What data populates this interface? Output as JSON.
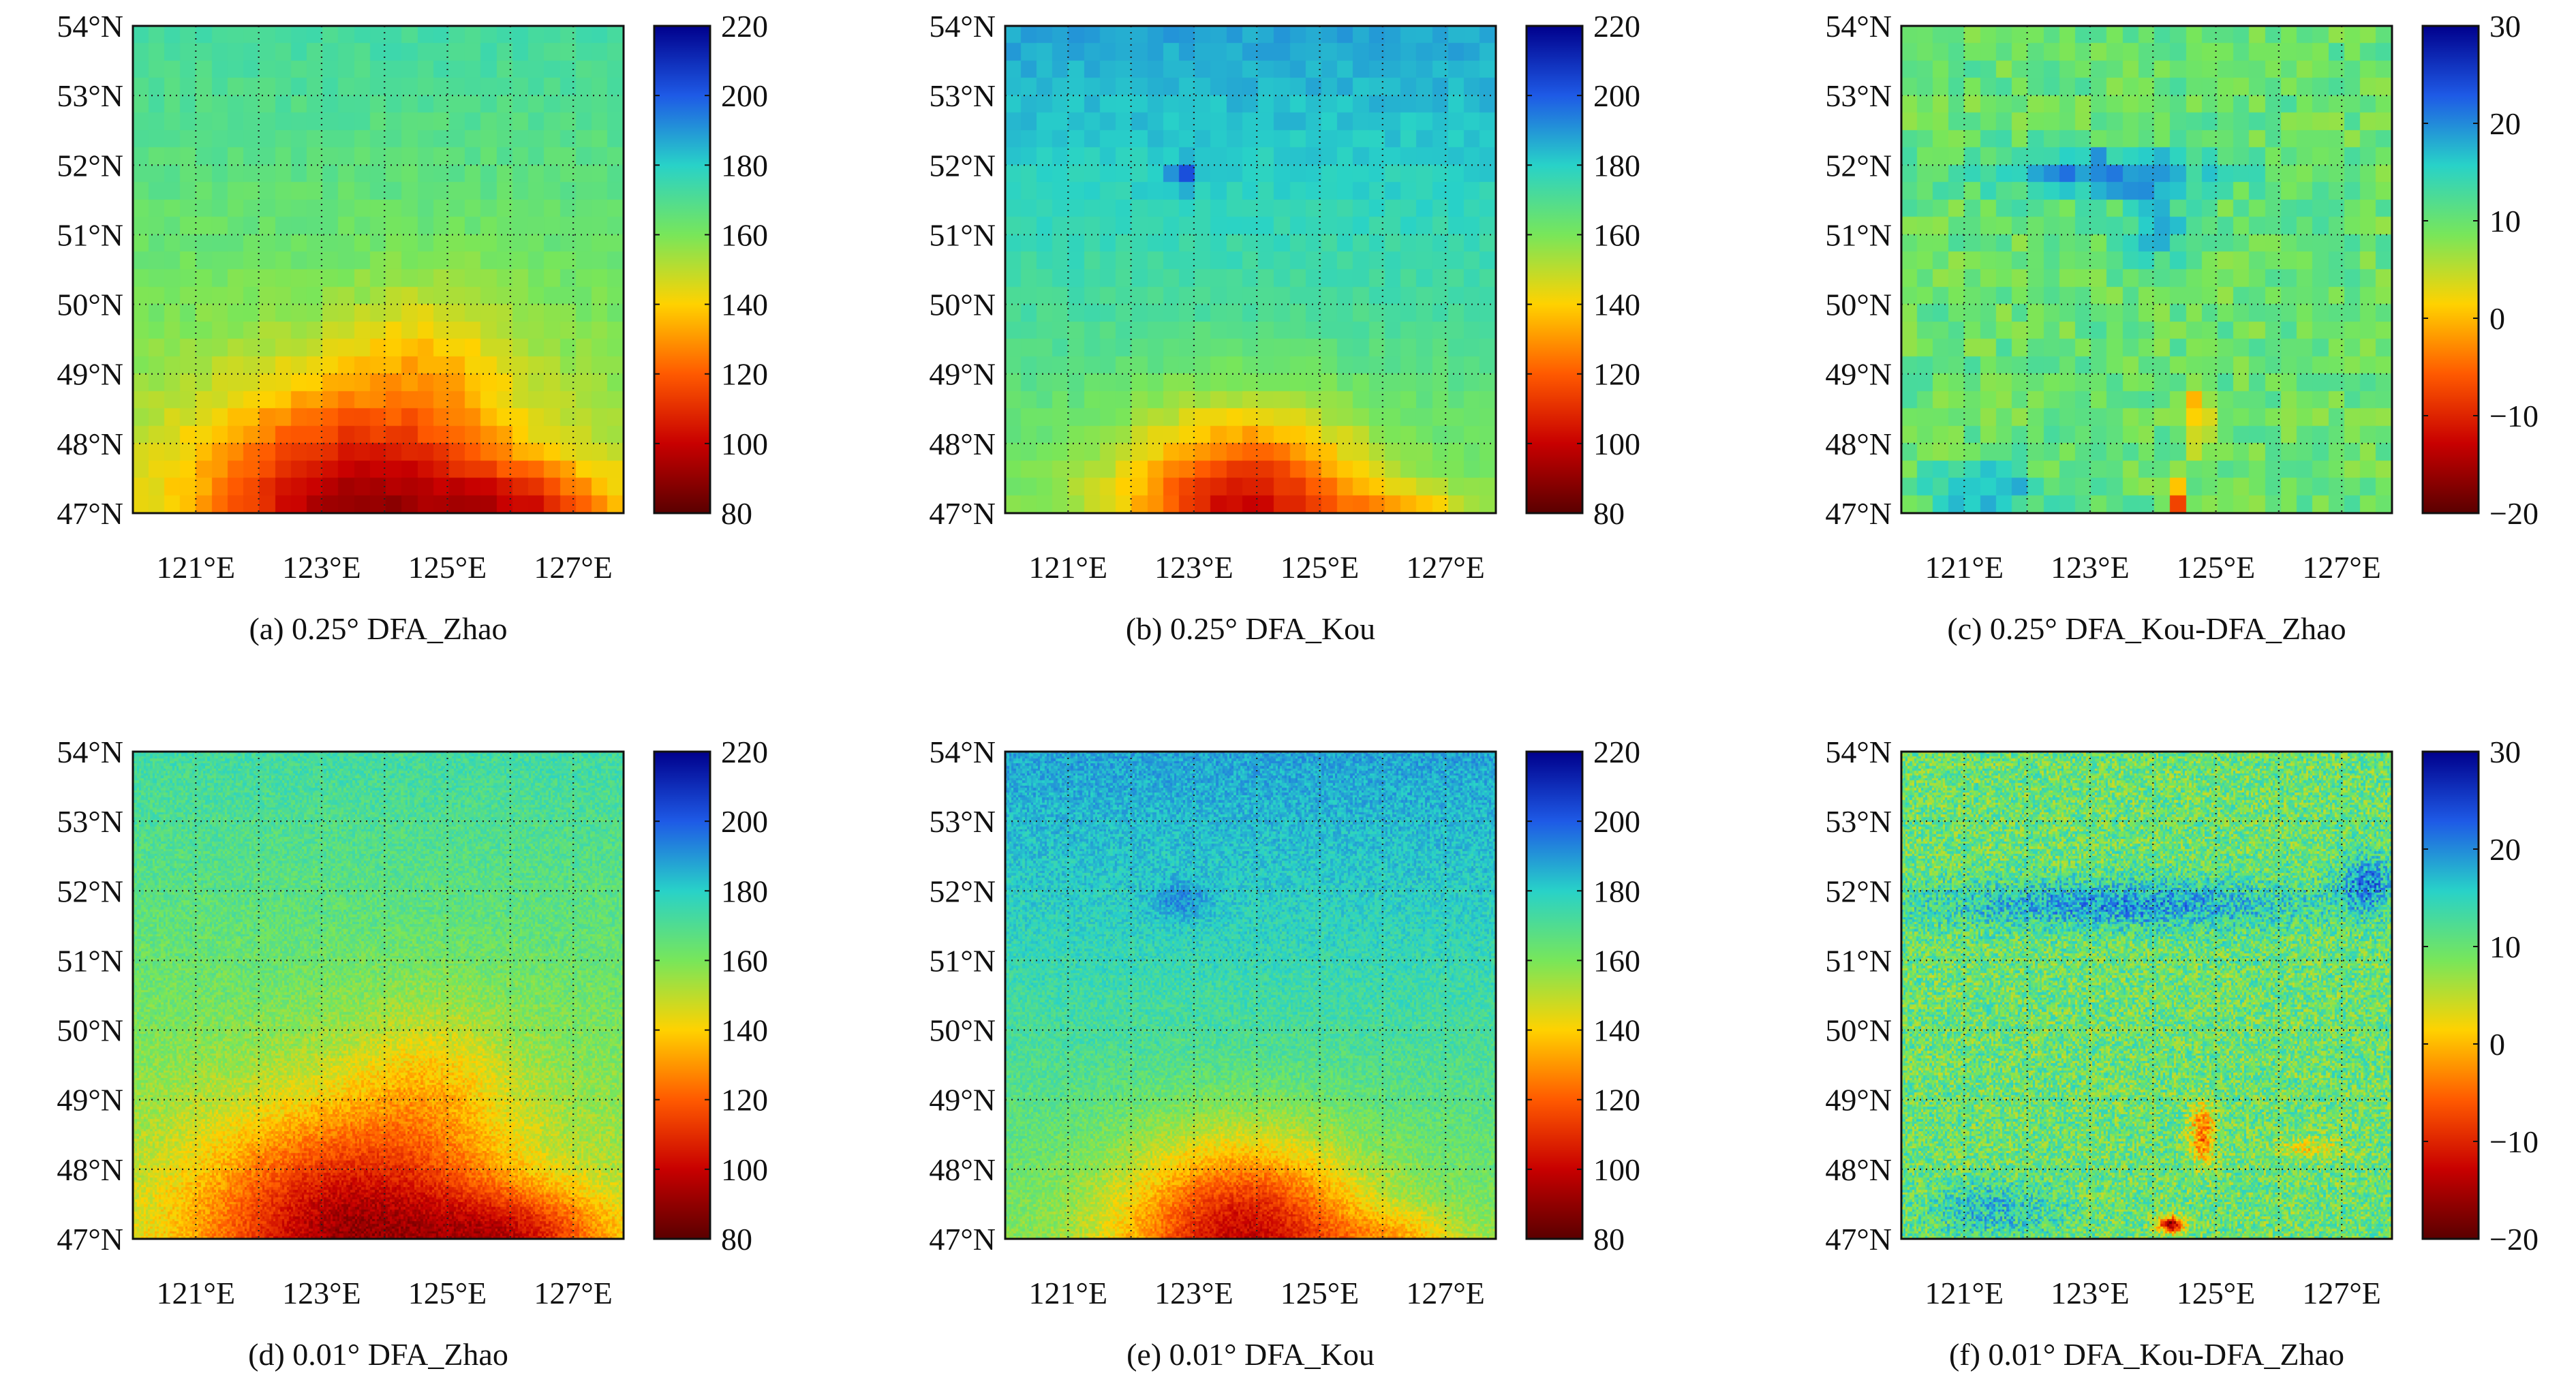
{
  "figure": {
    "panel_count": 6
  },
  "colormap": {
    "name": "jet",
    "stops": [
      "#5a0000",
      "#c80000",
      "#ff5a00",
      "#ffd200",
      "#78e65a",
      "#28d2c8",
      "#1e5ae6",
      "#00008c"
    ]
  },
  "chart_data": [
    {
      "type": "heatmap",
      "id": "a",
      "caption": "(a) 0.25° DFA_Zhao",
      "resolution": 0.25,
      "x_range": [
        120.0,
        127.8
      ],
      "y_range": [
        47,
        54
      ],
      "x_ticks": [
        121,
        123,
        125,
        127
      ],
      "x_tick_labels": [
        "121°E",
        "123°E",
        "125°E",
        "127°E"
      ],
      "y_ticks": [
        47,
        48,
        49,
        50,
        51,
        52,
        53,
        54
      ],
      "y_tick_labels": [
        "47°N",
        "48°N",
        "49°N",
        "50°N",
        "51°N",
        "52°N",
        "53°N",
        "54°N"
      ],
      "grid": "dotted",
      "colorbar": {
        "min": 80,
        "max": 220,
        "ticks": [
          80,
          100,
          120,
          140,
          160,
          180,
          200,
          220
        ],
        "labels": [
          "80",
          "100",
          "120",
          "140",
          "160",
          "180",
          "200",
          "220"
        ]
      },
      "field": {
        "base": 152,
        "north_gradient": 3,
        "noise": 3,
        "patches": [
          {
            "lon": 123.5,
            "lat": 47.0,
            "rx": 2.4,
            "ry": 1.8,
            "amp": -60
          },
          {
            "lon": 126.2,
            "lat": 47.0,
            "rx": 1.5,
            "ry": 0.7,
            "amp": -35
          },
          {
            "lon": 124.8,
            "lat": 49.3,
            "rx": 1.3,
            "ry": 1.2,
            "amp": -14
          }
        ]
      }
    },
    {
      "type": "heatmap",
      "id": "b",
      "caption": "(b) 0.25° DFA_Kou",
      "resolution": 0.25,
      "x_range": [
        120.0,
        127.8
      ],
      "y_range": [
        47,
        54
      ],
      "x_ticks": [
        121,
        123,
        125,
        127
      ],
      "x_tick_labels": [
        "121°E",
        "123°E",
        "125°E",
        "127°E"
      ],
      "y_ticks": [
        47,
        48,
        49,
        50,
        51,
        52,
        53,
        54
      ],
      "y_tick_labels": [
        "47°N",
        "48°N",
        "49°N",
        "50°N",
        "51°N",
        "52°N",
        "53°N",
        "54°N"
      ],
      "grid": "dotted",
      "colorbar": {
        "min": 80,
        "max": 220,
        "ticks": [
          80,
          100,
          120,
          140,
          160,
          180,
          200,
          220
        ],
        "labels": [
          "80",
          "100",
          "120",
          "140",
          "160",
          "180",
          "200",
          "220"
        ]
      },
      "field": {
        "base": 160,
        "north_gradient": 4,
        "noise": 3,
        "patches": [
          {
            "lon": 123.8,
            "lat": 47.0,
            "rx": 1.9,
            "ry": 1.4,
            "amp": -60
          },
          {
            "lon": 126.3,
            "lat": 47.0,
            "rx": 1.1,
            "ry": 0.4,
            "amp": -18
          },
          {
            "lon": 122.8,
            "lat": 51.85,
            "rx": 0.2,
            "ry": 0.2,
            "amp": 25
          }
        ]
      }
    },
    {
      "type": "heatmap",
      "id": "c",
      "caption": "(c) 0.25° DFA_Kou-DFA_Zhao",
      "resolution": 0.25,
      "x_range": [
        120.0,
        127.8
      ],
      "y_range": [
        47,
        54
      ],
      "x_ticks": [
        121,
        123,
        125,
        127
      ],
      "x_tick_labels": [
        "121°E",
        "123°E",
        "125°E",
        "127°E"
      ],
      "y_ticks": [
        47,
        48,
        49,
        50,
        51,
        52,
        53,
        54
      ],
      "y_tick_labels": [
        "47°N",
        "48°N",
        "49°N",
        "50°N",
        "51°N",
        "52°N",
        "53°N",
        "54°N"
      ],
      "grid": "dotted",
      "colorbar": {
        "min": -20,
        "max": 30,
        "ticks": [
          -20,
          -10,
          0,
          10,
          20,
          30
        ],
        "labels": [
          "−20",
          "−10",
          "0",
          "10",
          "20",
          "30"
        ]
      },
      "field": {
        "base": 10,
        "north_gradient": 0,
        "noise": 3,
        "patches": [
          {
            "lon": 123.2,
            "lat": 51.9,
            "rx": 1.8,
            "ry": 0.35,
            "amp": 10
          },
          {
            "lon": 124.0,
            "lat": 51.2,
            "rx": 0.5,
            "ry": 0.6,
            "amp": 7
          },
          {
            "lon": 121.3,
            "lat": 47.3,
            "rx": 0.9,
            "ry": 0.35,
            "amp": 9
          },
          {
            "lon": 124.7,
            "lat": 48.4,
            "rx": 0.15,
            "ry": 0.55,
            "amp": -14
          },
          {
            "lon": 124.4,
            "lat": 47.2,
            "rx": 0.15,
            "ry": 0.2,
            "amp": -20
          }
        ]
      }
    },
    {
      "type": "heatmap",
      "id": "d",
      "caption": "(d) 0.01° DFA_Zhao",
      "resolution": 0.01,
      "x_range": [
        120.0,
        127.8
      ],
      "y_range": [
        47,
        54
      ],
      "x_ticks": [
        121,
        123,
        125,
        127
      ],
      "x_tick_labels": [
        "121°E",
        "123°E",
        "125°E",
        "127°E"
      ],
      "y_ticks": [
        47,
        48,
        49,
        50,
        51,
        52,
        53,
        54
      ],
      "y_tick_labels": [
        "47°N",
        "48°N",
        "49°N",
        "50°N",
        "51°N",
        "52°N",
        "53°N",
        "54°N"
      ],
      "grid": "dotted",
      "colorbar": {
        "min": 80,
        "max": 220,
        "ticks": [
          80,
          100,
          120,
          140,
          160,
          180,
          200,
          220
        ],
        "labels": [
          "80",
          "100",
          "120",
          "140",
          "160",
          "180",
          "200",
          "220"
        ]
      },
      "field": {
        "base": 152,
        "north_gradient": 3,
        "noise": 7,
        "patches": [
          {
            "lon": 123.5,
            "lat": 47.0,
            "rx": 2.4,
            "ry": 1.8,
            "amp": -60
          },
          {
            "lon": 126.2,
            "lat": 47.0,
            "rx": 1.5,
            "ry": 0.7,
            "amp": -35
          },
          {
            "lon": 124.8,
            "lat": 49.3,
            "rx": 1.3,
            "ry": 1.2,
            "amp": -14
          }
        ]
      }
    },
    {
      "type": "heatmap",
      "id": "e",
      "caption": "(e) 0.01° DFA_Kou",
      "resolution": 0.01,
      "x_range": [
        120.0,
        127.8
      ],
      "y_range": [
        47,
        54
      ],
      "x_ticks": [
        121,
        123,
        125,
        127
      ],
      "x_tick_labels": [
        "121°E",
        "123°E",
        "125°E",
        "127°E"
      ],
      "y_ticks": [
        47,
        48,
        49,
        50,
        51,
        52,
        53,
        54
      ],
      "y_tick_labels": [
        "47°N",
        "48°N",
        "49°N",
        "50°N",
        "51°N",
        "52°N",
        "53°N",
        "54°N"
      ],
      "grid": "dotted",
      "colorbar": {
        "min": 80,
        "max": 220,
        "ticks": [
          80,
          100,
          120,
          140,
          160,
          180,
          200,
          220
        ],
        "labels": [
          "80",
          "100",
          "120",
          "140",
          "160",
          "180",
          "200",
          "220"
        ]
      },
      "field": {
        "base": 160,
        "north_gradient": 4,
        "noise": 7,
        "patches": [
          {
            "lon": 123.8,
            "lat": 47.0,
            "rx": 1.9,
            "ry": 1.4,
            "amp": -60
          },
          {
            "lon": 126.3,
            "lat": 47.0,
            "rx": 1.1,
            "ry": 0.4,
            "amp": -18
          },
          {
            "lon": 122.8,
            "lat": 51.85,
            "rx": 0.5,
            "ry": 0.3,
            "amp": 12
          }
        ]
      }
    },
    {
      "type": "heatmap",
      "id": "f",
      "caption": "(f) 0.01° DFA_Kou-DFA_Zhao",
      "resolution": 0.01,
      "x_range": [
        120.0,
        127.8
      ],
      "y_range": [
        47,
        54
      ],
      "x_ticks": [
        121,
        123,
        125,
        127
      ],
      "x_tick_labels": [
        "121°E",
        "123°E",
        "125°E",
        "127°E"
      ],
      "y_ticks": [
        47,
        48,
        49,
        50,
        51,
        52,
        53,
        54
      ],
      "y_tick_labels": [
        "47°N",
        "48°N",
        "49°N",
        "50°N",
        "51°N",
        "52°N",
        "53°N",
        "54°N"
      ],
      "grid": "dotted",
      "colorbar": {
        "min": -20,
        "max": 30,
        "ticks": [
          -20,
          -10,
          0,
          10,
          20,
          30
        ],
        "labels": [
          "−20",
          "−10",
          "0",
          "10",
          "20",
          "30"
        ]
      },
      "field": {
        "base": 10,
        "north_gradient": 0,
        "noise": 6,
        "patches": [
          {
            "lon": 123.5,
            "lat": 51.8,
            "rx": 3.0,
            "ry": 0.35,
            "amp": 9
          },
          {
            "lon": 127.4,
            "lat": 52.1,
            "rx": 0.4,
            "ry": 0.4,
            "amp": 10
          },
          {
            "lon": 121.5,
            "lat": 47.4,
            "rx": 1.0,
            "ry": 0.4,
            "amp": 6
          },
          {
            "lon": 124.8,
            "lat": 48.5,
            "rx": 0.2,
            "ry": 0.4,
            "amp": -15
          },
          {
            "lon": 124.3,
            "lat": 47.2,
            "rx": 0.2,
            "ry": 0.12,
            "amp": -25
          },
          {
            "lon": 126.5,
            "lat": 48.3,
            "rx": 0.5,
            "ry": 0.15,
            "amp": -7
          }
        ]
      }
    }
  ]
}
